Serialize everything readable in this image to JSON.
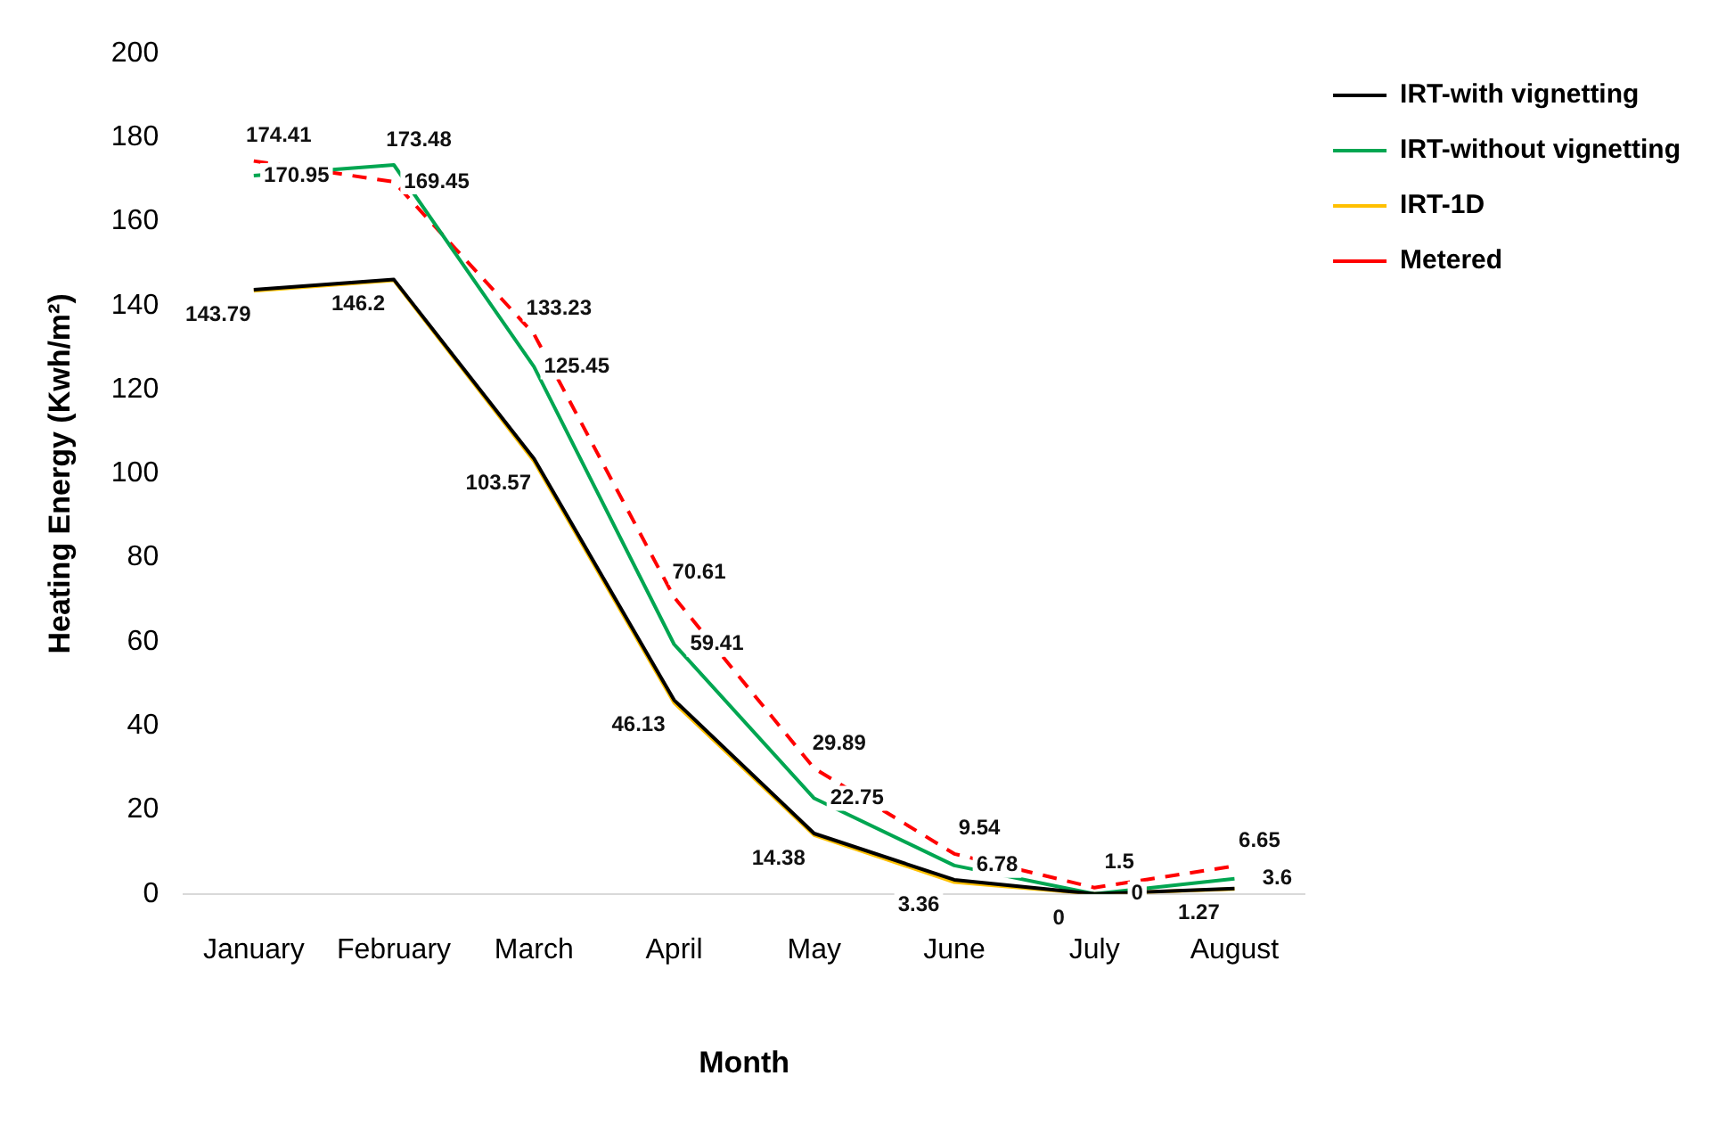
{
  "chart_data": {
    "type": "line",
    "xlabel": "Month",
    "ylabel": "Heating Energy (Kwh/m²)",
    "categories": [
      "January",
      "February",
      "March",
      "April",
      "May",
      "June",
      "July",
      "August"
    ],
    "ylim": [
      0,
      200
    ],
    "yticks": [
      0,
      20,
      40,
      60,
      80,
      100,
      120,
      140,
      160,
      180,
      200
    ],
    "grid": false,
    "legend": "top right",
    "marker": "none",
    "series": [
      {
        "name": "IRT-with vignetting",
        "color": "#000000",
        "line_style": "solid",
        "values": [
          143.79,
          146.2,
          103.57,
          46.13,
          14.38,
          3.36,
          0,
          1.27
        ],
        "value_labels": [
          "143.79",
          "146.2",
          "103.57",
          "46.13",
          "14.38",
          "3.36",
          "0",
          "1.27"
        ]
      },
      {
        "name": "IRT-without vignetting",
        "color": "#00a651",
        "line_style": "solid",
        "values": [
          170.95,
          173.48,
          125.45,
          59.41,
          22.75,
          6.78,
          0,
          3.6
        ],
        "value_labels": [
          "170.95",
          "173.48",
          "125.45",
          "59.41",
          "22.75",
          "6.78",
          "0",
          "3.6"
        ]
      },
      {
        "name": "IRT-1D",
        "color": "#ffc000",
        "line_style": "solid",
        "values": [
          143.5,
          146,
          103,
          45.5,
          14,
          2.8,
          0,
          1.2
        ]
      },
      {
        "name": "Metered",
        "color": "#ff0000",
        "line_style": "dashed",
        "values": [
          174.41,
          169.45,
          133.23,
          70.61,
          29.89,
          9.54,
          1.5,
          6.65
        ],
        "value_labels": [
          "174.41",
          "169.45",
          "133.23",
          "70.61",
          "29.89",
          "9.54",
          "1.5",
          "6.65"
        ]
      }
    ]
  }
}
